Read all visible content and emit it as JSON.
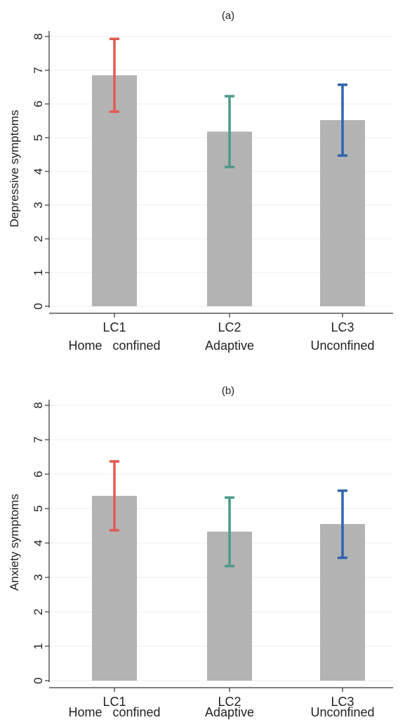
{
  "chart_data": [
    {
      "type": "bar",
      "title": "(a)",
      "ylabel": "Depressive symptoms",
      "xlabel": "",
      "ylim": [
        0,
        8
      ],
      "yticks": [
        "0",
        "1",
        "2",
        "3",
        "4",
        "5",
        "6",
        "7",
        "8"
      ],
      "categories": [
        {
          "line1": "LC1",
          "line2": "Home   confined"
        },
        {
          "line1": "LC2",
          "line2": "Adaptive"
        },
        {
          "line1": "LC3",
          "line2": "Unconfined"
        }
      ],
      "values": [
        6.85,
        5.18,
        5.52
      ],
      "error_low": [
        5.77,
        4.13,
        4.47
      ],
      "error_high": [
        7.93,
        6.23,
        6.57
      ],
      "error_colors": [
        "#e05a52",
        "#4a9a8c",
        "#2f63b0"
      ],
      "bar_color": "#b3b3b3",
      "grid": true
    },
    {
      "type": "bar",
      "title": "(b)",
      "ylabel": "Anxiety symptoms",
      "xlabel": "",
      "ylim": [
        0,
        8
      ],
      "yticks": [
        "0",
        "1",
        "2",
        "3",
        "4",
        "5",
        "6",
        "7",
        "8"
      ],
      "categories": [
        {
          "line1": "LC1",
          "line2": "Home   confined"
        },
        {
          "line1": "LC2",
          "line2": "Adaptive"
        },
        {
          "line1": "LC3",
          "line2": "Unconfined"
        }
      ],
      "values": [
        5.37,
        4.33,
        4.55
      ],
      "error_low": [
        4.37,
        3.33,
        3.57
      ],
      "error_high": [
        6.37,
        5.32,
        5.52
      ],
      "error_colors": [
        "#e05a52",
        "#4a9a8c",
        "#2f63b0"
      ],
      "bar_color": "#b3b3b3",
      "grid": true
    }
  ]
}
